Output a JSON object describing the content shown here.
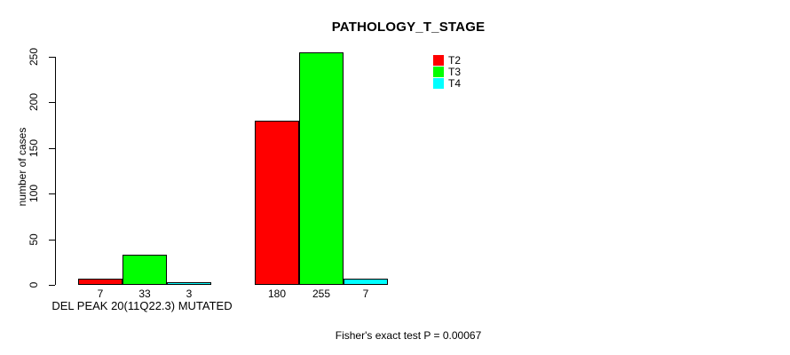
{
  "chart_data": {
    "type": "bar",
    "title": "PATHOLOGY_T_STAGE",
    "ylabel": "number of cases",
    "ylim": [
      0,
      250
    ],
    "yticks": [
      0,
      50,
      100,
      150,
      200,
      250
    ],
    "categories": [
      "DEL PEAK 20(11Q22.3) MUTATED",
      ""
    ],
    "series": [
      {
        "name": "T2",
        "color": "#FF0000",
        "values": [
          7,
          180
        ]
      },
      {
        "name": "T3",
        "color": "#00FF00",
        "values": [
          33,
          255
        ]
      },
      {
        "name": "T4",
        "color": "#00FFFF",
        "values": [
          3,
          7
        ]
      }
    ],
    "bar_value_labels": true,
    "legend_position": "top-right",
    "annotation": "Fisher's exact test P = 0.00067",
    "grid": false,
    "background_color": "#FFFFFF",
    "bar_border_color": "#000000"
  }
}
